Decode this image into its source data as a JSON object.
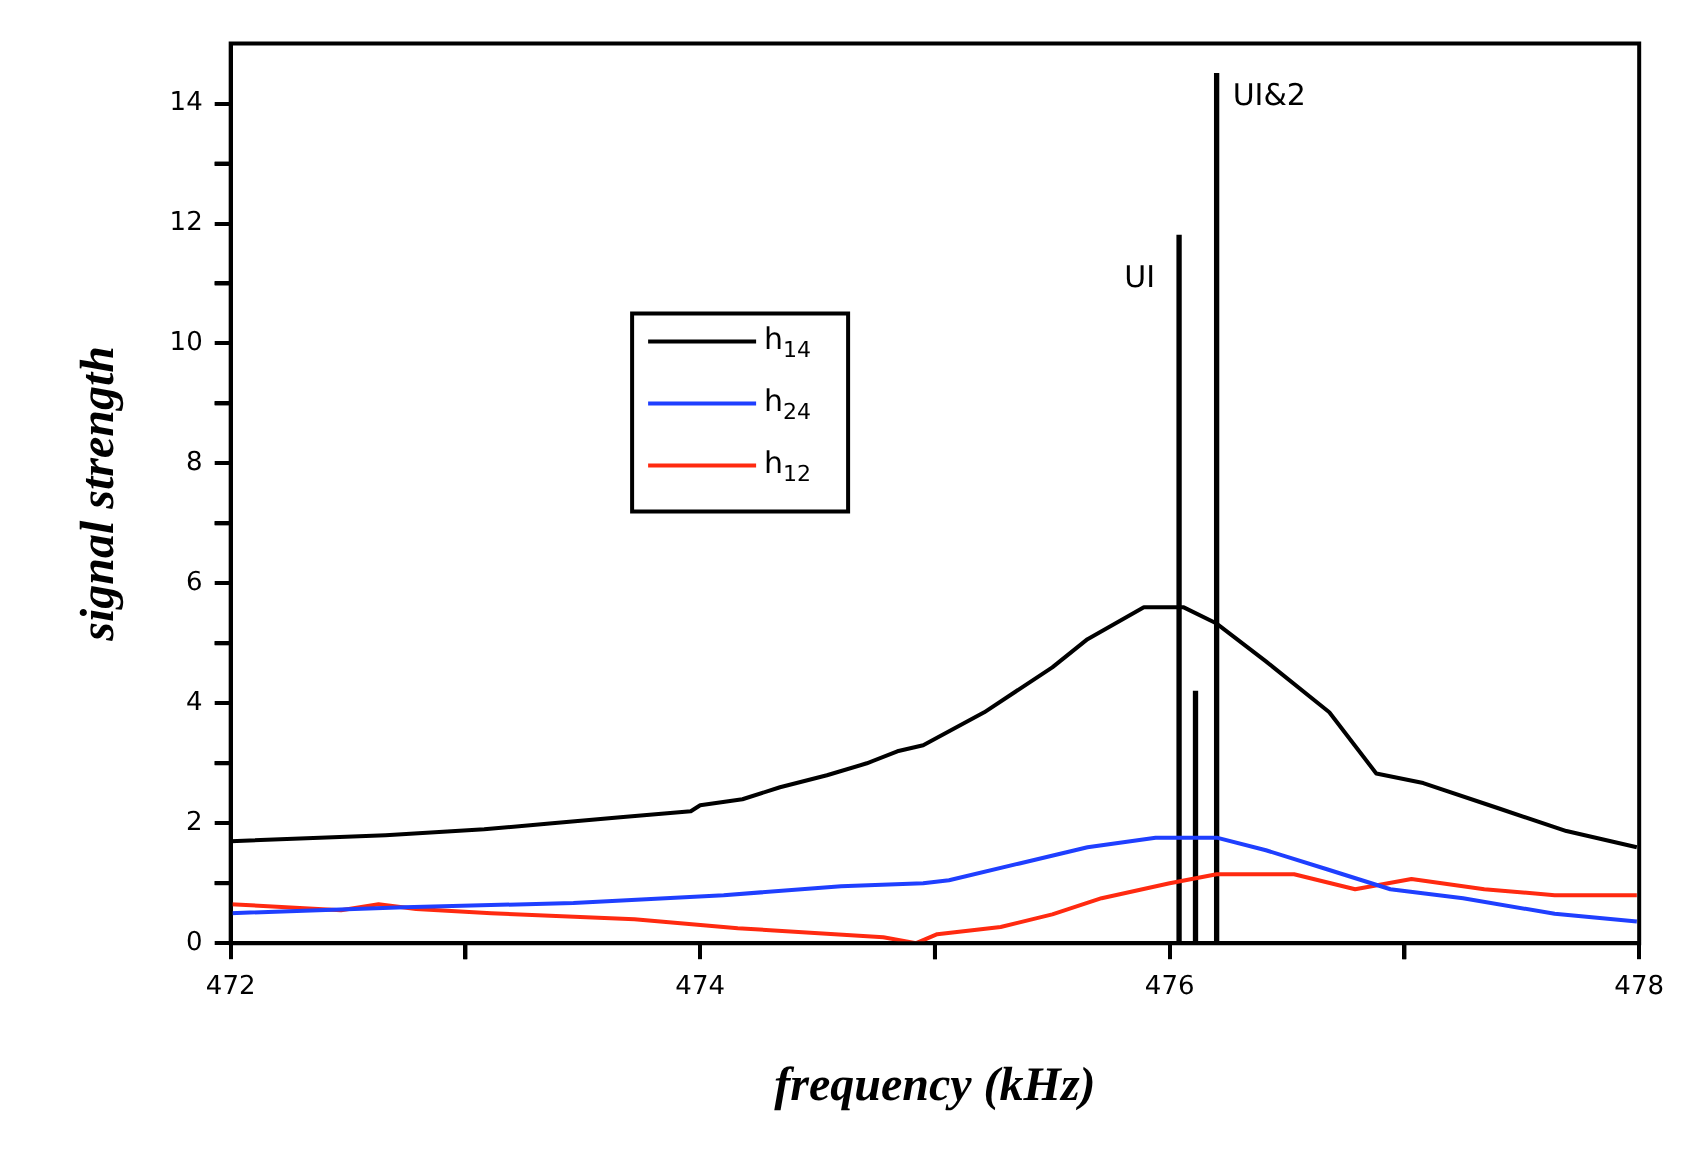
{
  "chart_data": {
    "type": "line",
    "xlabel": "frequency (kHz)",
    "ylabel": "signal strength",
    "xlim": [
      472,
      478
    ],
    "xticks": [
      472,
      {
        "value": 473,
        "label": null
      },
      474,
      {
        "value": 475,
        "label": null
      },
      476,
      {
        "value": 477,
        "label": null
      },
      478
    ],
    "ylim": [
      0,
      15
    ],
    "yticks": [
      0,
      {
        "value": 1,
        "label": null
      },
      2,
      {
        "value": 3,
        "label": null
      },
      4,
      {
        "value": 5,
        "label": null
      },
      6,
      {
        "value": 7,
        "label": null
      },
      8,
      {
        "value": 9,
        "label": null
      },
      10,
      {
        "value": 11,
        "label": null
      },
      12,
      {
        "value": 13,
        "label": null
      },
      14
    ],
    "legend": "top left",
    "marker": "none",
    "line_style": "solid",
    "series": [
      {
        "name": "h$_{14}$",
        "color": "#000000",
        "x": [
          472,
          472.66,
          473.08,
          473.37,
          473.66,
          473.96,
          474.0,
          474.18,
          474.34,
          474.54,
          474.71,
          474.84,
          474.95,
          475.21,
          475.5,
          475.65,
          475.89,
          476.06,
          476.2,
          476.41,
          476.68,
          476.88,
          477.08,
          477.4,
          477.69,
          477.99
        ],
        "values": [
          1.7,
          1.8,
          1.9,
          2.0,
          2.1,
          2.2,
          2.3,
          2.4,
          2.6,
          2.8,
          3.0,
          3.2,
          3.3,
          3.85,
          4.6,
          5.07,
          5.6,
          5.6,
          5.33,
          4.7,
          3.85,
          2.83,
          2.67,
          2.25,
          1.87,
          1.6
        ]
      },
      {
        "name": "h$_{24}$",
        "color": "#1f3fff",
        "x": [
          472,
          472.74,
          473.46,
          474.1,
          474.6,
          474.95,
          475.06,
          475.36,
          475.65,
          475.94,
          476.2,
          476.41,
          476.68,
          476.94,
          477.25,
          477.64,
          477.99
        ],
        "values": [
          0.5,
          0.6,
          0.67,
          0.8,
          0.95,
          1.0,
          1.05,
          1.33,
          1.6,
          1.76,
          1.76,
          1.55,
          1.22,
          0.9,
          0.75,
          0.49,
          0.36
        ]
      },
      {
        "name": "h$_{12}$",
        "color": "#ff2a10",
        "x": [
          472,
          472.47,
          472.63,
          472.79,
          473.11,
          473.72,
          474.16,
          474.78,
          474.92,
          475.01,
          475.28,
          475.5,
          475.71,
          476.0,
          476.2,
          476.53,
          476.79,
          477.03,
          477.34,
          477.64,
          477.99
        ],
        "values": [
          0.65,
          0.55,
          0.65,
          0.57,
          0.5,
          0.4,
          0.25,
          0.1,
          0.0,
          0.15,
          0.27,
          0.48,
          0.75,
          1.0,
          1.15,
          1.15,
          0.9,
          1.07,
          0.9,
          0.8,
          0.8
        ]
      },
      {
        "type": "bar",
        "color": "#000000",
        "x": [
          476.04,
          476.11,
          476.2
        ],
        "values": [
          11.8,
          4.2,
          14.5
        ]
      }
    ],
    "annotations": [
      {
        "text": "UI",
        "x": 476.04,
        "y": 11.8
      },
      {
        "text": "UI&2",
        "x": 476.2,
        "y": 14.5
      }
    ]
  }
}
